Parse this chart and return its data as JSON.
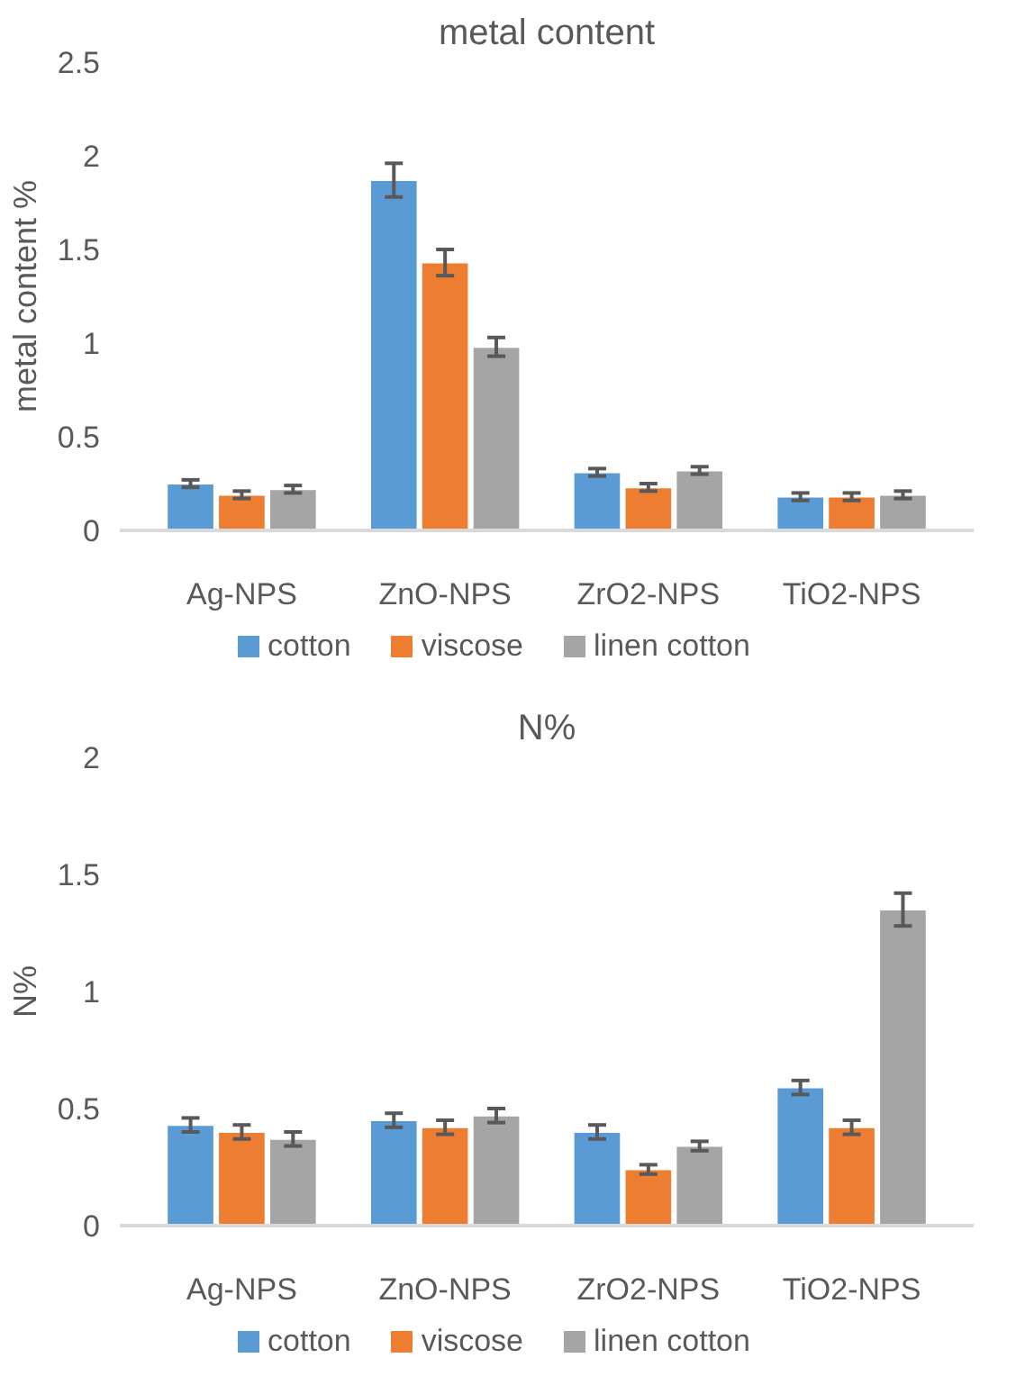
{
  "chart_data": [
    {
      "type": "bar",
      "title": "metal content",
      "ylabel": "metal content %",
      "categories": [
        "Ag-NPS",
        "ZnO-NPS",
        "ZrO2-NPS",
        "TiO2-NPS"
      ],
      "series": [
        {
          "name": "cotton",
          "color": "#5b9bd5",
          "values": [
            0.25,
            1.87,
            0.31,
            0.18
          ],
          "errors": [
            0.02,
            0.09,
            0.02,
            0.02
          ]
        },
        {
          "name": "viscose",
          "color": "#ed7d31",
          "values": [
            0.19,
            1.43,
            0.23,
            0.18
          ],
          "errors": [
            0.02,
            0.07,
            0.02,
            0.02
          ]
        },
        {
          "name": "linen cotton",
          "color": "#a5a5a5",
          "values": [
            0.22,
            0.98,
            0.32,
            0.19
          ],
          "errors": [
            0.02,
            0.05,
            0.02,
            0.02
          ]
        }
      ],
      "ylim": [
        0,
        2.5
      ],
      "yticks": [
        0,
        0.5,
        1,
        1.5,
        2,
        2.5
      ],
      "grid": false,
      "legend": "bottom"
    },
    {
      "type": "bar",
      "title": "N%",
      "ylabel": "N%",
      "categories": [
        "Ag-NPS",
        "ZnO-NPS",
        "ZrO2-NPS",
        "TiO2-NPS"
      ],
      "series": [
        {
          "name": "cotton",
          "color": "#5b9bd5",
          "values": [
            0.43,
            0.45,
            0.4,
            0.59
          ],
          "errors": [
            0.03,
            0.03,
            0.03,
            0.03
          ]
        },
        {
          "name": "viscose",
          "color": "#ed7d31",
          "values": [
            0.4,
            0.42,
            0.24,
            0.42
          ],
          "errors": [
            0.03,
            0.03,
            0.02,
            0.03
          ]
        },
        {
          "name": "linen cotton",
          "color": "#a5a5a5",
          "values": [
            0.37,
            0.47,
            0.34,
            1.35
          ],
          "errors": [
            0.03,
            0.03,
            0.02,
            0.07
          ]
        }
      ],
      "ylim": [
        0,
        2
      ],
      "yticks": [
        0,
        0.5,
        1,
        1.5,
        2
      ],
      "grid": false,
      "legend": "bottom"
    }
  ]
}
